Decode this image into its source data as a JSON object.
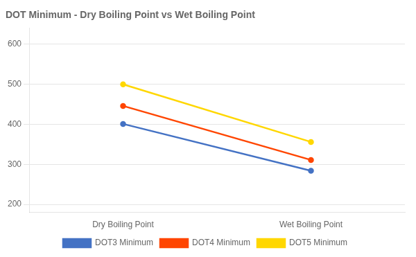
{
  "chart_data": {
    "type": "line",
    "title": "DOT Minimum - Dry Boiling Point vs Wet Boiling Point",
    "categories": [
      "Dry Boiling Point",
      "Wet Boiling Point"
    ],
    "series": [
      {
        "name": "DOT3 Minimum",
        "color": "#4472C4",
        "values": [
          401,
          284
        ]
      },
      {
        "name": "DOT4 Minimum",
        "color": "#FF4500",
        "values": [
          446,
          311
        ]
      },
      {
        "name": "DOT5 Minimum",
        "color": "#FFD700",
        "values": [
          500,
          356
        ]
      }
    ],
    "ylim": [
      180,
      640
    ],
    "yticks": [
      200,
      300,
      400,
      500,
      600
    ],
    "grid": true,
    "legend": "bottom"
  }
}
